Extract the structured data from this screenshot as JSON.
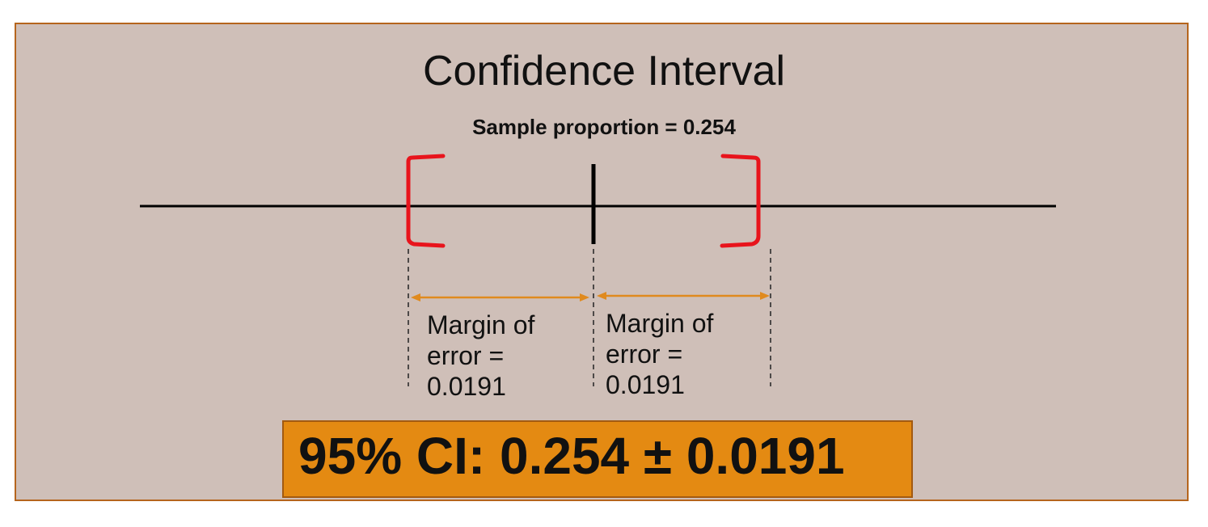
{
  "title": "Confidence Interval",
  "subtitle": "Sample proportion = 0.254",
  "margins": {
    "left": {
      "line1": "Margin of",
      "line2": "error =",
      "line3": "0.0191"
    },
    "right": {
      "line1": "Margin of",
      "line2": "error =",
      "line3": "0.0191"
    }
  },
  "ci_result": "95% CI: 0.254 ± 0.0191",
  "colors": {
    "panel_background": "#cfbfb8",
    "panel_border": "#b5651d",
    "bracket": "#e8141c",
    "arrow": "#e08a1e",
    "result_box": "#e48a12"
  }
}
